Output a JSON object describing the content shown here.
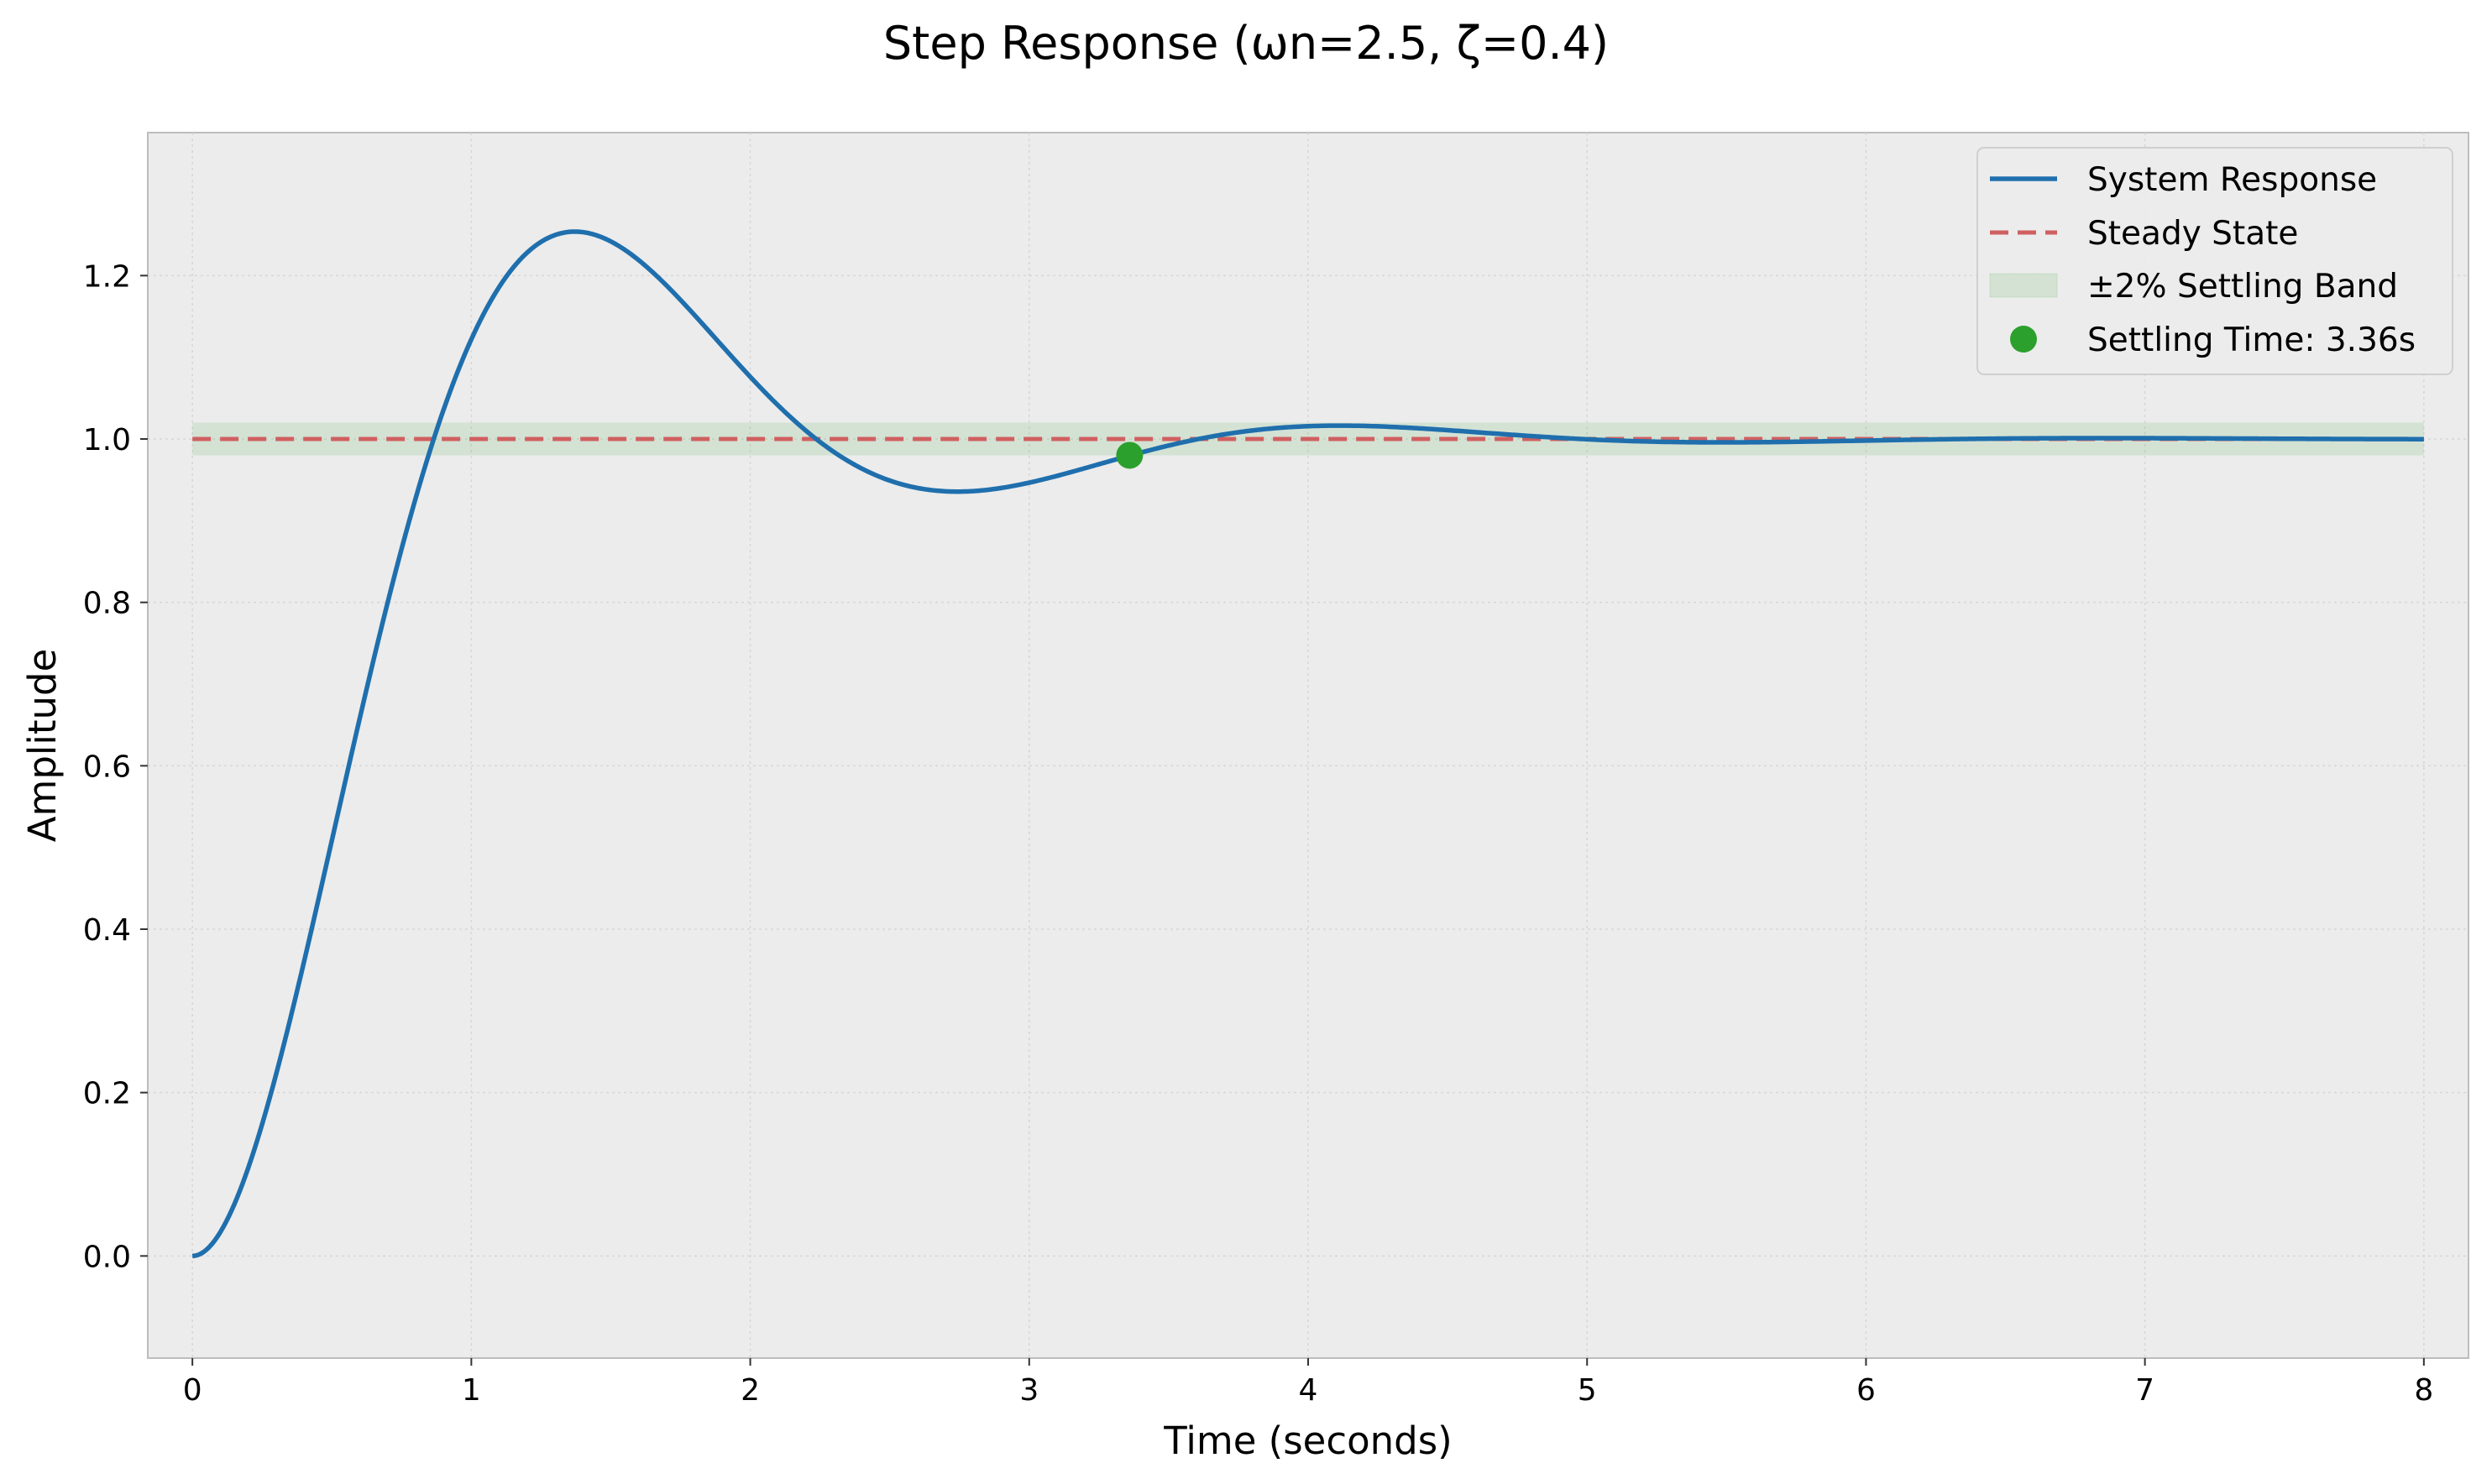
{
  "chart_data": {
    "type": "line",
    "title": "Step Response (ωn=2.5, ζ=0.4)",
    "xlabel": "Time (seconds)",
    "ylabel": "Amplitude",
    "xlim": [
      -0.16,
      8.16
    ],
    "ylim": [
      -0.125,
      1.375
    ],
    "x_ticks": [
      0,
      1,
      2,
      3,
      4,
      5,
      6,
      7,
      8
    ],
    "y_ticks": [
      0.0,
      0.2,
      0.4,
      0.6,
      0.8,
      1.0,
      1.2
    ],
    "x_tick_labels": [
      "0",
      "1",
      "2",
      "3",
      "4",
      "5",
      "6",
      "7",
      "8"
    ],
    "y_tick_labels": [
      "0.0",
      "0.2",
      "0.4",
      "0.6",
      "0.8",
      "1.0",
      "1.2"
    ],
    "grid": true,
    "legend_position": "top-right",
    "parameters": {
      "wn": 2.5,
      "zeta": 0.4,
      "t_start": 0,
      "t_end": 8
    },
    "series": [
      {
        "name": "System Response",
        "kind": "line",
        "color": "#1f6fad",
        "x": [
          0,
          0.25,
          0.5,
          0.75,
          1.0,
          1.25,
          1.37,
          1.5,
          1.75,
          2.0,
          2.25,
          2.5,
          2.75,
          3.0,
          3.25,
          3.5,
          3.75,
          4.1,
          4.5,
          5.0,
          5.5,
          6.0,
          6.5,
          7.0,
          7.5,
          8.0
        ],
        "y": [
          0.0,
          0.17,
          0.48,
          0.84,
          1.12,
          1.24,
          1.254,
          1.24,
          1.16,
          1.06,
          0.985,
          0.945,
          0.935,
          0.948,
          0.975,
          1.0,
          1.012,
          1.016,
          1.011,
          0.999,
          0.996,
          0.999,
          1.001,
          1.001,
          1.0,
          1.0
        ]
      },
      {
        "name": "Steady State",
        "kind": "hline",
        "value": 1.0,
        "color": "#d06060"
      },
      {
        "name": "±2% Settling Band",
        "kind": "band",
        "lower": 0.98,
        "upper": 1.02,
        "color": "#2ca02c"
      },
      {
        "name": "Settling Time: 3.36s",
        "kind": "point",
        "x": 3.36,
        "y": 0.98,
        "color": "#2ca02c"
      }
    ]
  }
}
